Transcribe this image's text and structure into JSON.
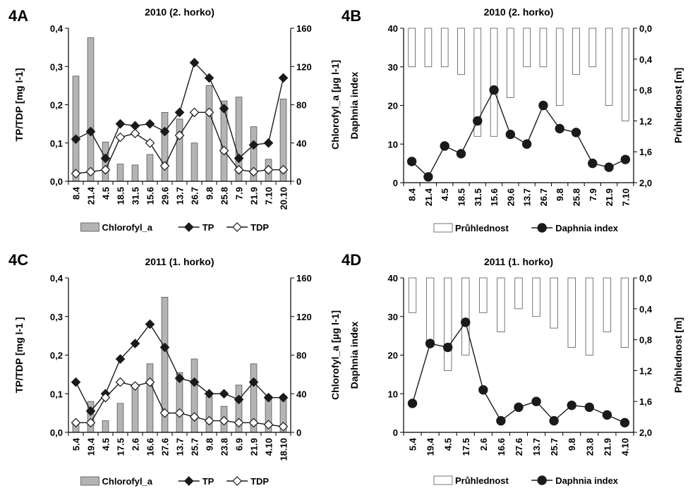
{
  "chart_data": [
    {
      "id": "4A",
      "panel_label": "4A",
      "type": "bar+line",
      "title": "2010 (2. horko)",
      "categories": [
        "8.4",
        "21.4",
        "4.5",
        "18.5",
        "31.5",
        "15.6",
        "29.6",
        "13.7",
        "26.7",
        "9.8",
        "25.8",
        "7.9",
        "21.9",
        "7.10",
        "20.10"
      ],
      "ylabel_left": "TP/TDP [mg l-1]",
      "ylabel_right": "Chlorofyl_a [µg l-1]",
      "ylim_left": [
        0,
        0.4
      ],
      "ylim_right": [
        0,
        160
      ],
      "yticks_left": [
        "0,0",
        "0,1",
        "0,2",
        "0,3",
        "0,4"
      ],
      "yticks_right": [
        "0",
        "40",
        "80",
        "120",
        "160"
      ],
      "series": [
        {
          "name": "Chlorofyl_a",
          "kind": "bar",
          "axis": "right",
          "color": "#b4b4b4",
          "values": [
            110,
            150,
            41,
            18,
            17,
            28,
            72,
            65,
            40,
            100,
            84,
            88,
            57,
            23,
            86
          ]
        },
        {
          "name": "TP",
          "kind": "line",
          "axis": "left",
          "marker": "diamond-filled",
          "color": "#1a1a1a",
          "values": [
            0.11,
            0.13,
            0.06,
            0.15,
            0.145,
            0.15,
            0.13,
            0.18,
            0.31,
            0.27,
            0.19,
            0.06,
            0.095,
            0.1,
            0.27
          ]
        },
        {
          "name": "TDP",
          "kind": "line",
          "axis": "left",
          "marker": "diamond-open",
          "color": "#1a1a1a",
          "values": [
            0.02,
            0.025,
            0.03,
            0.115,
            0.125,
            0.1,
            0.04,
            0.12,
            0.18,
            0.18,
            0.08,
            0.03,
            0.025,
            0.03,
            0.03
          ]
        }
      ]
    },
    {
      "id": "4B",
      "panel_label": "4B",
      "type": "bar+line",
      "title": "2010 (2. horko)",
      "categories": [
        "8.4",
        "21.4",
        "4.5",
        "18.5",
        "31.5",
        "15.6",
        "29.6",
        "13.7",
        "26.7",
        "9.8",
        "25.8",
        "7.9",
        "21.9",
        "7.10"
      ],
      "ylabel_left": "Daphnia index",
      "ylabel_right": "Průhlednost [m]",
      "ylim_left": [
        0,
        40
      ],
      "ylim_right": [
        0,
        2
      ],
      "right_axis_inverted": true,
      "yticks_left": [
        "0",
        "10",
        "20",
        "30",
        "40"
      ],
      "yticks_right": [
        "0,0",
        "0,4",
        "0,8",
        "1,2",
        "1,6",
        "2,0"
      ],
      "series": [
        {
          "name": "Průhlednost",
          "kind": "bar-from-top",
          "axis": "right",
          "color": "#ffffff",
          "values": [
            0.5,
            0.5,
            0.5,
            0.6,
            1.4,
            1.4,
            0.9,
            0.5,
            0.5,
            1.0,
            0.6,
            0.5,
            1.0,
            1.2
          ]
        },
        {
          "name": "Daphnia index",
          "kind": "line",
          "axis": "left",
          "marker": "circle-filled",
          "color": "#1a1a1a",
          "values": [
            5.5,
            1.5,
            9.5,
            7.5,
            16,
            24,
            12.5,
            10,
            20,
            14,
            13,
            5,
            4,
            6
          ]
        }
      ]
    },
    {
      "id": "4C",
      "panel_label": "4C",
      "type": "bar+line",
      "title": "2011 (1. horko)",
      "categories": [
        "5.4",
        "19.4",
        "4.5",
        "17.5",
        "2.6",
        "16.6",
        "27.6",
        "13.7",
        "25.7",
        "9.8",
        "23.8",
        "6.9",
        "21.9",
        "4.10",
        "18.10"
      ],
      "ylabel_left": "TP/TDP [mg l-1 ]",
      "ylabel_right": "Chlorofyl_a [µg l-1]",
      "ylim_left": [
        0,
        0.4
      ],
      "ylim_right": [
        0,
        160
      ],
      "yticks_left": [
        "0,0",
        "0,1",
        "0,2",
        "0,3",
        "0,4"
      ],
      "yticks_right": [
        "0",
        "40",
        "80",
        "120",
        "160"
      ],
      "series": [
        {
          "name": "Chlorofyl_a",
          "kind": "bar",
          "axis": "right",
          "color": "#b4b4b4",
          "values": [
            10,
            32,
            12,
            30,
            48,
            71,
            140,
            62,
            76,
            37,
            27,
            49,
            71,
            38,
            38
          ]
        },
        {
          "name": "TP",
          "kind": "line",
          "axis": "left",
          "marker": "diamond-filled",
          "color": "#1a1a1a",
          "values": [
            0.13,
            0.055,
            0.1,
            0.19,
            0.23,
            0.28,
            0.22,
            0.14,
            0.13,
            0.1,
            0.1,
            0.085,
            0.13,
            0.09,
            0.09
          ]
        },
        {
          "name": "TDP",
          "kind": "line",
          "axis": "left",
          "marker": "diamond-open",
          "color": "#1a1a1a",
          "values": [
            0.025,
            0.025,
            0.09,
            0.13,
            0.12,
            0.13,
            0.05,
            0.05,
            0.04,
            0.03,
            0.03,
            0.025,
            0.025,
            0.02,
            0.015
          ]
        }
      ]
    },
    {
      "id": "4D",
      "panel_label": "4D",
      "type": "bar+line",
      "title": "2011 (1. horko)",
      "categories": [
        "5.4",
        "19.4",
        "4.5",
        "17.5",
        "2.6",
        "16.6",
        "27.6",
        "13.7",
        "25.7",
        "9.8",
        "23.8",
        "21.9",
        "4.10"
      ],
      "ylabel_left": "Daphnia index",
      "ylabel_right": "Průhlednost [m]",
      "ylim_left": [
        0,
        40
      ],
      "ylim_right": [
        0,
        2
      ],
      "right_axis_inverted": true,
      "yticks_left": [
        "0",
        "10",
        "20",
        "30",
        "40"
      ],
      "yticks_right": [
        "0,0",
        "0,4",
        "0,8",
        "1,2",
        "1,6",
        "2,0"
      ],
      "series": [
        {
          "name": "Průhlednost",
          "kind": "bar-from-top",
          "axis": "right",
          "color": "#ffffff",
          "values": [
            0.45,
            0.85,
            1.2,
            1.0,
            0.45,
            0.7,
            0.4,
            0.5,
            0.65,
            0.9,
            1.0,
            0.7,
            0.9
          ]
        },
        {
          "name": "Daphnia index",
          "kind": "line",
          "axis": "left",
          "marker": "circle-filled",
          "color": "#1a1a1a",
          "values": [
            7.5,
            23,
            22,
            28.5,
            11,
            3,
            6.5,
            8,
            3,
            7,
            6.5,
            4.5,
            2.5
          ]
        }
      ]
    }
  ]
}
